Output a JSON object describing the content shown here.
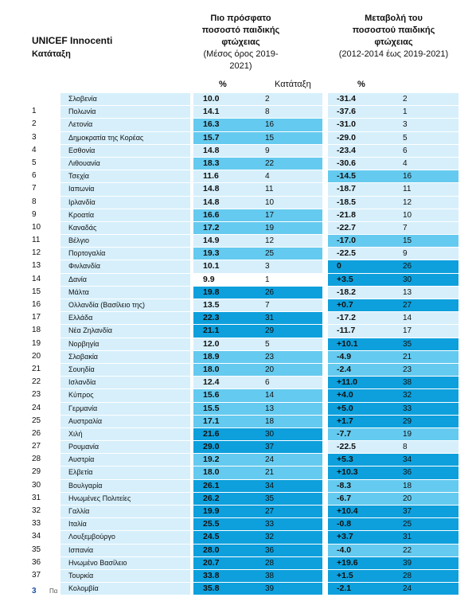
{
  "header": {
    "org": "UNICEF Innocenti",
    "subtitle": "Κατάταξη",
    "col1": {
      "line1": "Πιο πρόσφατο",
      "line2": "ποσοστό παιδικής",
      "line3": "φτώχειας",
      "line4": "(Μέσος όρος 2019-",
      "line5": "2021)"
    },
    "col2": {
      "line1": "Μεταβολή του",
      "line2": "ποσοστού παιδικής",
      "line3": "φτώχειας",
      "line4": "(2012-2014 έως 2019-2021)"
    },
    "pct1": "%",
    "rank1": "Κατάταξη",
    "pct2": "%"
  },
  "rows": [
    {
      "rank": "",
      "country": "Σλοβενία",
      "v1": "10.0",
      "r1": "2",
      "v2": "-31.4",
      "r2": "2",
      "c1": "light",
      "c2": "light"
    },
    {
      "rank": "1",
      "country": "Πολωνία",
      "v1": "14.1",
      "r1": "8",
      "v2": "-37.6",
      "r2": "1",
      "c1": "light",
      "c2": "light"
    },
    {
      "rank": "2",
      "country": "Λετονία",
      "v1": "16.3",
      "r1": "16",
      "v2": "-31.0",
      "r2": "3",
      "c1": "mid",
      "c2": "light"
    },
    {
      "rank": "3",
      "country": "Δημοκρατία της Κορέας",
      "v1": "15.7",
      "r1": "15",
      "v2": "-29.0",
      "r2": "5",
      "c1": "mid",
      "c2": "light"
    },
    {
      "rank": "4",
      "country": "Εσθονία",
      "v1": "14.8",
      "r1": "9",
      "v2": "-23.4",
      "r2": "6",
      "c1": "light",
      "c2": "light"
    },
    {
      "rank": "5",
      "country": "Λιθουανία",
      "v1": "18.3",
      "r1": "22",
      "v2": "-30.6",
      "r2": "4",
      "c1": "mid",
      "c2": "light"
    },
    {
      "rank": "6",
      "country": "Τσεχία",
      "v1": "11.6",
      "r1": "4",
      "v2": "-14.5",
      "r2": "16",
      "c1": "light",
      "c2": "mid"
    },
    {
      "rank": "7",
      "country": "Ιαπωνία",
      "v1": "14.8",
      "r1": "11",
      "v2": "-18.7",
      "r2": "11",
      "c1": "light",
      "c2": "light"
    },
    {
      "rank": "8",
      "country": "Ιρλανδία",
      "v1": "14.8",
      "r1": "10",
      "v2": "-18.5",
      "r2": "12",
      "c1": "light",
      "c2": "light"
    },
    {
      "rank": "9",
      "country": "Κροατία",
      "v1": "16.6",
      "r1": "17",
      "v2": "-21.8",
      "r2": "10",
      "c1": "mid",
      "c2": "light"
    },
    {
      "rank": "10",
      "country": "Καναδάς",
      "v1": "17.2",
      "r1": "19",
      "v2": "-22.7",
      "r2": "7",
      "c1": "mid",
      "c2": "light"
    },
    {
      "rank": "11",
      "country": "Βέλγιο",
      "v1": "14.9",
      "r1": "12",
      "v2": "-17.0",
      "r2": "15",
      "c1": "light",
      "c2": "mid"
    },
    {
      "rank": "12",
      "country": "Πορτογαλία",
      "v1": "19.3",
      "r1": "25",
      "v2": "-22.5",
      "r2": "9",
      "c1": "mid",
      "c2": "light"
    },
    {
      "rank": "13",
      "country": "Φινλανδία",
      "v1": "10.1",
      "r1": "3",
      "v2": "0",
      "r2": "26",
      "c1": "light",
      "c2": "dark"
    },
    {
      "rank": "14",
      "country": "Δανία",
      "v1": "9.9",
      "r1": "1",
      "v2": "+3.5",
      "r2": "30",
      "c1": "white",
      "c2": "dark"
    },
    {
      "rank": "15",
      "country": "Μάλτα",
      "v1": "19.8",
      "r1": "26",
      "v2": "-18.2",
      "r2": "13",
      "c1": "dark",
      "c2": "light"
    },
    {
      "rank": "16",
      "country": "Ολλανδία (Βασίλειο της)",
      "v1": "13.5",
      "r1": "7",
      "v2": "+0.7",
      "r2": "27",
      "c1": "light",
      "c2": "dark"
    },
    {
      "rank": "17",
      "country": "Ελλάδα",
      "v1": "22.3",
      "r1": "31",
      "v2": "-17.2",
      "r2": "14",
      "c1": "dark",
      "c2": "light"
    },
    {
      "rank": "18",
      "country": "Νέα Ζηλανδία",
      "v1": "21.1",
      "r1": "29",
      "v2": "-11.7",
      "r2": "17",
      "c1": "dark",
      "c2": "light"
    },
    {
      "rank": "19",
      "country": "Νορβηγία",
      "v1": "12.0",
      "r1": "5",
      "v2": "+10.1",
      "r2": "35",
      "c1": "light",
      "c2": "dark"
    },
    {
      "rank": "20",
      "country": "Σλοβακία",
      "v1": "18.9",
      "r1": "23",
      "v2": "-4.9",
      "r2": "21",
      "c1": "mid",
      "c2": "mid"
    },
    {
      "rank": "21",
      "country": "Σουηδία",
      "v1": "18.0",
      "r1": "20",
      "v2": "-2.4",
      "r2": "23",
      "c1": "mid",
      "c2": "mid"
    },
    {
      "rank": "22",
      "country": "Ισλανδία",
      "v1": "12.4",
      "r1": "6",
      "v2": "+11.0",
      "r2": "38",
      "c1": "light",
      "c2": "dark"
    },
    {
      "rank": "23",
      "country": "Κύπρος",
      "v1": "15.6",
      "r1": "14",
      "v2": "+4.0",
      "r2": "32",
      "c1": "mid",
      "c2": "dark"
    },
    {
      "rank": "24",
      "country": "Γερμανία",
      "v1": "15.5",
      "r1": "13",
      "v2": "+5.0",
      "r2": "33",
      "c1": "mid",
      "c2": "dark"
    },
    {
      "rank": "25",
      "country": "Αυστραλία",
      "v1": "17.1",
      "r1": "18",
      "v2": "+1.7",
      "r2": "29",
      "c1": "mid",
      "c2": "dark"
    },
    {
      "rank": "26",
      "country": "Χιλή",
      "v1": "21.6",
      "r1": "30",
      "v2": "-7.7",
      "r2": "19",
      "c1": "dark",
      "c2": "mid"
    },
    {
      "rank": "27",
      "country": "Ρουμανία",
      "v1": "29.0",
      "r1": "37",
      "v2": "-22.5",
      "r2": "8",
      "c1": "dark",
      "c2": "light"
    },
    {
      "rank": "28",
      "country": "Αυστρία",
      "v1": "19.2",
      "r1": "24",
      "v2": "+5.3",
      "r2": "34",
      "c1": "mid",
      "c2": "dark"
    },
    {
      "rank": "29",
      "country": "Ελβετία",
      "v1": "18.0",
      "r1": "21",
      "v2": "+10.3",
      "r2": "36",
      "c1": "mid",
      "c2": "dark"
    },
    {
      "rank": "30",
      "country": "Βουλγαρία",
      "v1": "26.1",
      "r1": "34",
      "v2": "-8.3",
      "r2": "18",
      "c1": "dark",
      "c2": "mid"
    },
    {
      "rank": "31",
      "country": "Ηνωμένες Πολιτείες",
      "v1": "26.2",
      "r1": "35",
      "v2": "-6.7",
      "r2": "20",
      "c1": "dark",
      "c2": "mid"
    },
    {
      "rank": "32",
      "country": "Γαλλία",
      "v1": "19.9",
      "r1": "27",
      "v2": "+10.4",
      "r2": "37",
      "c1": "dark",
      "c2": "dark"
    },
    {
      "rank": "33",
      "country": "Ιταλία",
      "v1": "25.5",
      "r1": "33",
      "v2": "-0.8",
      "r2": "25",
      "c1": "dark",
      "c2": "dark"
    },
    {
      "rank": "34",
      "country": "Λουξεμβούργο",
      "v1": "24.5",
      "r1": "32",
      "v2": "+3.7",
      "r2": "31",
      "c1": "dark",
      "c2": "dark"
    },
    {
      "rank": "35",
      "country": "Ισπανία",
      "v1": "28.0",
      "r1": "36",
      "v2": "-4.0",
      "r2": "22",
      "c1": "dark",
      "c2": "mid"
    },
    {
      "rank": "36",
      "country": "Ηνωμένο Βασίλειο",
      "v1": "20.7",
      "r1": "28",
      "v2": "+19.6",
      "r2": "39",
      "c1": "dark",
      "c2": "dark"
    },
    {
      "rank": "37",
      "country": "Τουρκία",
      "v1": "33.8",
      "r1": "38",
      "v2": "+1.5",
      "r2": "28",
      "c1": "dark",
      "c2": "dark"
    },
    {
      "rank": "",
      "country": "Κολομβία",
      "v1": "35.8",
      "r1": "39",
      "v2": "-2.1",
      "r2": "24",
      "c1": "dark",
      "c2": "dark"
    }
  ],
  "footer": {
    "page": "3",
    "text": "Πα"
  },
  "colors": {
    "light": "#d6effb",
    "mid": "#65caef",
    "dark": "#0ea0dc",
    "white": "#ffffff"
  }
}
